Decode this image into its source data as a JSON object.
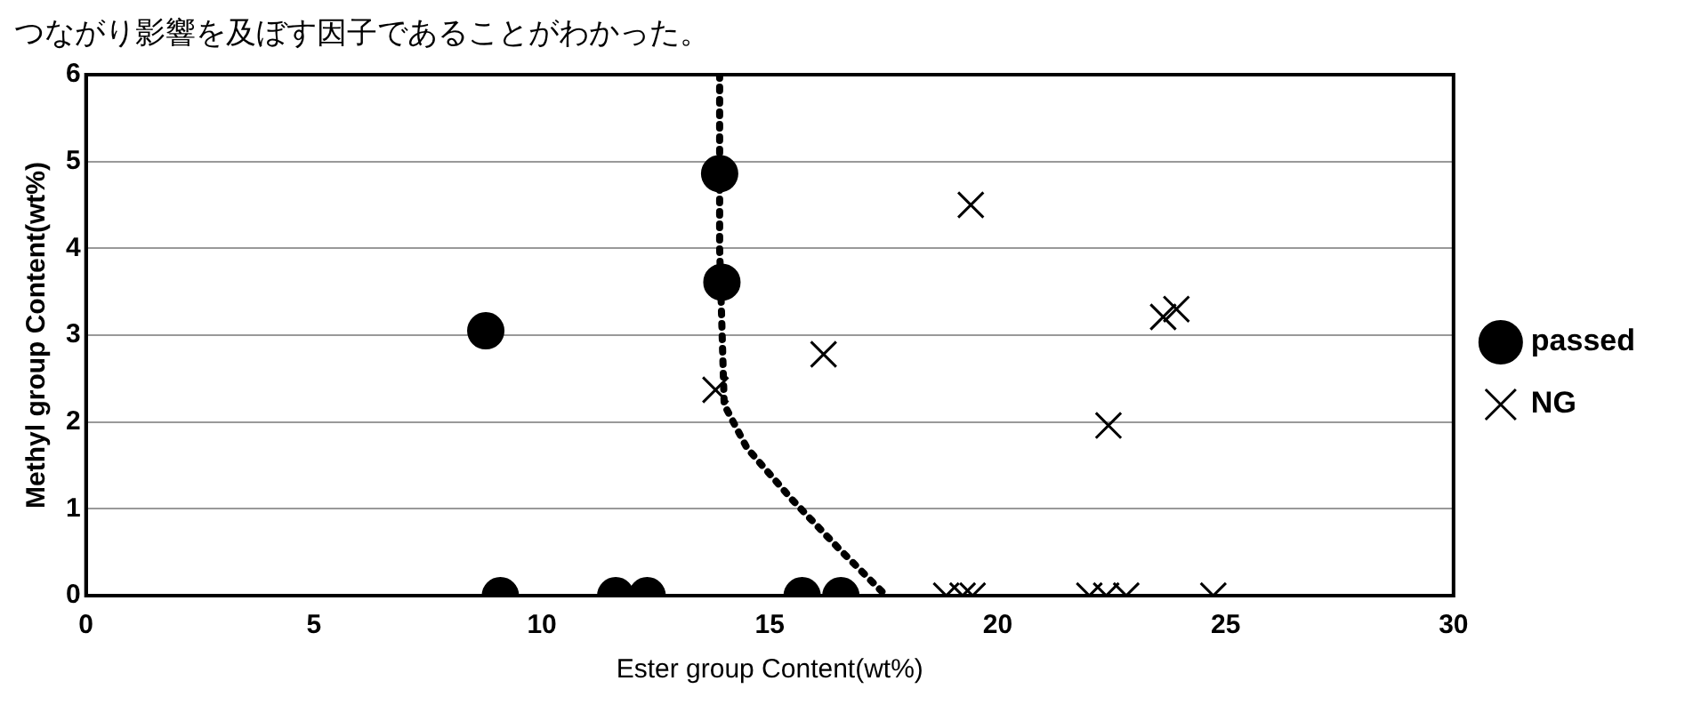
{
  "chart_data": {
    "type": "scatter",
    "xlabel": "Ester group Content(wt%)",
    "ylabel": "Methyl group Content(wt%)",
    "annotations": [
      "つながり影響を及ぼす因子であることがわかった。"
    ],
    "xlim": [
      0,
      30
    ],
    "xticks": [
      0,
      5,
      10,
      15,
      20,
      25,
      30
    ],
    "ylim": [
      0,
      6
    ],
    "yticks": [
      0,
      1,
      2,
      3,
      4,
      5,
      6
    ],
    "grid": "y",
    "legend": "right",
    "series": [
      {
        "name": "passed",
        "color": "#000000",
        "marker": "circle",
        "x": [
          8.77,
          9.09,
          11.62,
          12.31,
          13.9,
          13.95,
          15.71,
          16.56
        ],
        "values": [
          3.05,
          0,
          0,
          0,
          4.86,
          3.61,
          0,
          0
        ]
      },
      {
        "name": "NG",
        "color": "#000000",
        "marker": "cross",
        "x": [
          13.81,
          16.18,
          19.41,
          22.43,
          23.63,
          23.92,
          18.87,
          19.23,
          19.45,
          22.01,
          22.38,
          22.82,
          24.73
        ],
        "values": [
          2.37,
          2.78,
          4.5,
          1.96,
          3.21,
          3.3,
          0,
          0,
          0,
          0,
          0,
          0,
          0
        ]
      },
      {
        "type": "line",
        "color": "#000000",
        "line_style": "dotted",
        "marker": "none",
        "x": [
          13.9,
          13.9,
          14.0,
          14.5,
          15.5,
          16.5,
          17.55
        ],
        "values": [
          6,
          4,
          2.2,
          1.7,
          1.1,
          0.55,
          0
        ]
      }
    ]
  }
}
